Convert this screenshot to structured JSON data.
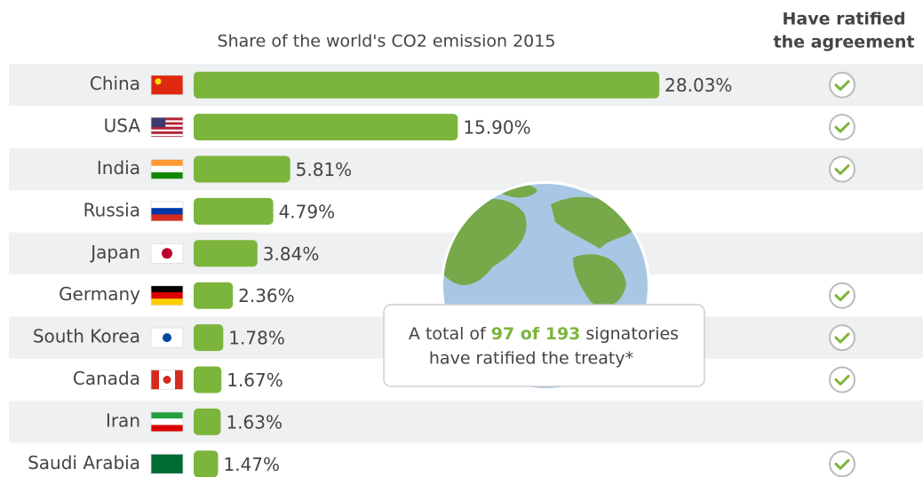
{
  "chart_data": {
    "type": "bar",
    "orientation": "horizontal",
    "title": "Share of the world's CO2 emission 2015",
    "categories": [
      "China",
      "USA",
      "India",
      "Russia",
      "Japan",
      "Germany",
      "South Korea",
      "Canada",
      "Iran",
      "Saudi Arabia"
    ],
    "values": [
      28.03,
      15.9,
      5.81,
      4.79,
      3.84,
      2.36,
      1.78,
      1.67,
      1.63,
      1.47
    ],
    "value_labels": [
      "28.03%",
      "15.90%",
      "5.81%",
      "4.79%",
      "3.84%",
      "2.36%",
      "1.78%",
      "1.67%",
      "1.63%",
      "1.47%"
    ],
    "color": "#7cb53c",
    "column_header": [
      "Have ratified",
      "the agreement"
    ],
    "ratified": [
      true,
      true,
      true,
      false,
      false,
      true,
      true,
      true,
      false,
      true
    ],
    "annotation": [
      "A total of",
      "97 of 193",
      "signatories",
      "have ratified the treaty*"
    ],
    "highlight_color": "#7cb53c"
  }
}
